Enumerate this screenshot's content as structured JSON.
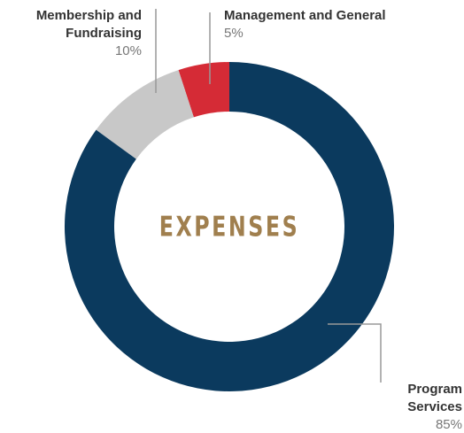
{
  "chart_data": {
    "type": "donut",
    "center_label": "EXPENSES",
    "categories": [
      "Program Services",
      "Membership and Fundraising",
      "Management and General"
    ],
    "values": [
      85,
      10,
      5
    ],
    "value_labels": [
      "85%",
      "10%",
      "5%"
    ],
    "colors": [
      "#0b3a5e",
      "#c8c8c8",
      "#d52b36"
    ]
  }
}
